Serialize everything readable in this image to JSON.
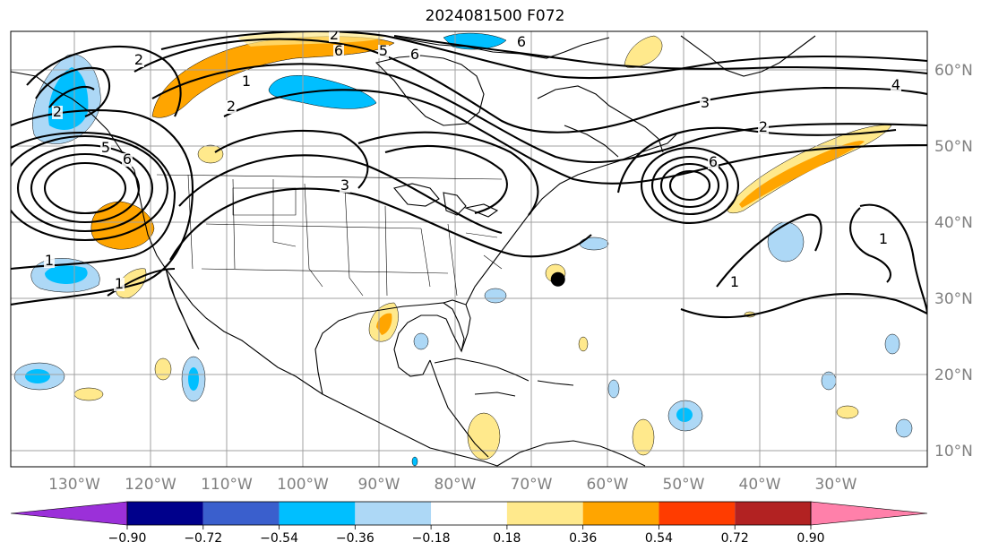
{
  "title": "2024081500 F072",
  "lon_labels": [
    "130°W",
    "120°W",
    "110°W",
    "100°W",
    "90°W",
    "80°W",
    "70°W",
    "60°W",
    "50°W",
    "40°W",
    "30°W"
  ],
  "lat_labels": [
    "60°N",
    "50°N",
    "40°N",
    "30°N",
    "20°N",
    "10°N"
  ],
  "colorbar": {
    "ticks": [
      "−0.90",
      "−0.72",
      "−0.54",
      "−0.36",
      "−0.18",
      "0.18",
      "0.36",
      "0.54",
      "0.72",
      "0.90"
    ],
    "colors": [
      "#9b30d9",
      "#00008b",
      "#3a5fcd",
      "#00bfff",
      "#add8f6",
      "#ffffff",
      "#ffe98c",
      "#ffa500",
      "#ff3c00",
      "#b22222",
      "#ff80aa"
    ]
  },
  "contour_labels": [
    "2",
    "5",
    "6",
    "1",
    "2",
    "3",
    "6",
    "2",
    "5",
    "6",
    "6",
    "2",
    "3",
    "4",
    "2",
    "6",
    "1",
    "1",
    "1",
    "1"
  ],
  "colors": {
    "neg_light": "#add8f6",
    "neg_mid": "#00bfff",
    "pos_light": "#ffe98c",
    "pos_mid": "#ffa500"
  },
  "marker": {
    "name": "storm-center",
    "lon": -66.5,
    "lat": 32.5
  }
}
